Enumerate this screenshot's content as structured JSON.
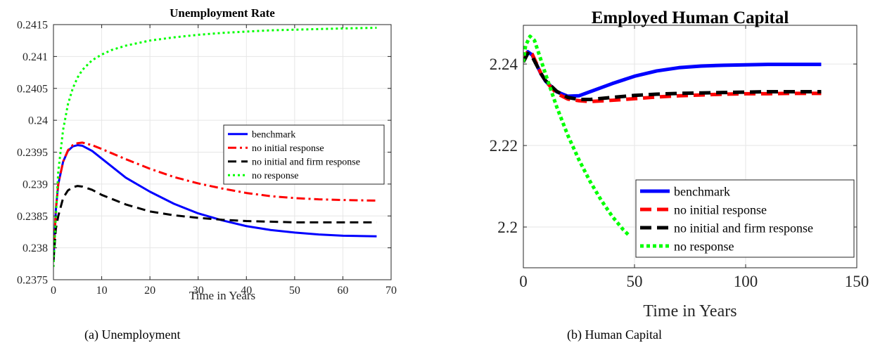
{
  "figure": {
    "caption_a": "(a)  Unemployment",
    "caption_b": "(b) Human Capital"
  },
  "chart_data": [
    {
      "type": "line",
      "title": "Unemployment Rate",
      "xlabel": "Time in Years",
      "ylabel": "",
      "xlim": [
        0,
        70
      ],
      "ylim": [
        0.2375,
        0.2415
      ],
      "xticks": [
        0,
        10,
        20,
        30,
        40,
        50,
        60,
        70
      ],
      "yticks": [
        0.2375,
        0.238,
        0.2385,
        0.239,
        0.2395,
        0.24,
        0.2405,
        0.241,
        0.2415
      ],
      "yticklabels": [
        "0.2375",
        "0.238",
        "0.2385",
        "0.239",
        "0.2395",
        "0.24",
        "0.2405",
        "0.241",
        "0.2415"
      ],
      "grid": true,
      "legend_position": "right",
      "series": [
        {
          "name": "benchmark",
          "color": "#0000ff",
          "dash": "solid",
          "x": [
            0,
            0.5,
            1,
            2,
            3,
            4,
            5,
            6,
            8,
            10,
            15,
            20,
            25,
            30,
            35,
            40,
            45,
            50,
            55,
            60,
            67
          ],
          "y": [
            0.2378,
            0.2386,
            0.239,
            0.23935,
            0.23952,
            0.23959,
            0.23961,
            0.2396,
            0.23952,
            0.2394,
            0.2391,
            0.23888,
            0.23869,
            0.23854,
            0.23843,
            0.23834,
            0.23828,
            0.23824,
            0.23821,
            0.23819,
            0.23818
          ]
        },
        {
          "name": "no initial response",
          "color": "#ff0000",
          "dash": "dashdot",
          "x": [
            0,
            0.5,
            1,
            2,
            3,
            4,
            5,
            6,
            8,
            10,
            15,
            20,
            25,
            30,
            35,
            40,
            45,
            50,
            55,
            60,
            67
          ],
          "y": [
            0.2378,
            0.2386,
            0.239,
            0.23935,
            0.23953,
            0.23961,
            0.23964,
            0.23965,
            0.23961,
            0.23955,
            0.23939,
            0.23924,
            0.23911,
            0.23901,
            0.23893,
            0.23886,
            0.23881,
            0.23878,
            0.23876,
            0.23875,
            0.23874
          ]
        },
        {
          "name": "no initial and firm response",
          "color": "#000000",
          "dash": "dashed",
          "x": [
            0,
            0.5,
            1,
            2,
            3,
            4,
            5,
            6,
            8,
            10,
            15,
            20,
            25,
            30,
            35,
            40,
            45,
            50,
            55,
            60,
            67
          ],
          "y": [
            0.2378,
            0.2383,
            0.2385,
            0.23878,
            0.2389,
            0.23895,
            0.23897,
            0.23896,
            0.23891,
            0.23883,
            0.23868,
            0.23857,
            0.23851,
            0.23847,
            0.23844,
            0.23842,
            0.23841,
            0.2384,
            0.2384,
            0.2384,
            0.2384
          ]
        },
        {
          "name": "no response",
          "color": "#00ff00",
          "dash": "dotted",
          "x": [
            0,
            0.5,
            1,
            2,
            3,
            4,
            5,
            6,
            8,
            10,
            12,
            15,
            20,
            25,
            30,
            35,
            40,
            45,
            50,
            55,
            60,
            67
          ],
          "y": [
            0.2377,
            0.2385,
            0.2392,
            0.23985,
            0.24025,
            0.2405,
            0.24067,
            0.24079,
            0.24094,
            0.24103,
            0.2411,
            0.24117,
            0.24125,
            0.2413,
            0.24134,
            0.24137,
            0.24139,
            0.24141,
            0.24142,
            0.24143,
            0.24144,
            0.24145
          ]
        }
      ]
    },
    {
      "type": "line",
      "title": "Employed Human Capital",
      "xlabel": "Time in Years",
      "ylabel": "",
      "xlim": [
        0,
        150
      ],
      "ylim": [
        2.19,
        2.2495
      ],
      "xticks": [
        0,
        50,
        100,
        150
      ],
      "yticks": [
        2.2,
        2.22,
        2.24
      ],
      "yticklabels": [
        "2.2",
        "2.22",
        "2.24"
      ],
      "grid": true,
      "legend_position": "bottom-right",
      "series": [
        {
          "name": "benchmark",
          "color": "#0000ff",
          "dash": "solid",
          "x": [
            0,
            2,
            4,
            6,
            8,
            10,
            15,
            20,
            25,
            30,
            40,
            50,
            60,
            70,
            80,
            90,
            100,
            110,
            120,
            134
          ],
          "y": [
            2.2405,
            2.243,
            2.2422,
            2.2398,
            2.2375,
            2.2358,
            2.2332,
            2.2321,
            2.2322,
            2.2332,
            2.2352,
            2.237,
            2.2383,
            2.2391,
            2.2395,
            2.2397,
            2.2398,
            2.2399,
            2.2399,
            2.2399
          ]
        },
        {
          "name": "no initial response",
          "color": "#ff0000",
          "dash": "dashed",
          "x": [
            0,
            2,
            4,
            6,
            8,
            10,
            15,
            20,
            25,
            30,
            40,
            50,
            60,
            70,
            80,
            90,
            100,
            110,
            120,
            134
          ],
          "y": [
            2.2405,
            2.2432,
            2.2424,
            2.24,
            2.2376,
            2.2358,
            2.2328,
            2.2314,
            2.231,
            2.2308,
            2.2311,
            2.2315,
            2.2319,
            2.2322,
            2.2324,
            2.2326,
            2.2327,
            2.2327,
            2.2328,
            2.2328
          ]
        },
        {
          "name": "no initial and firm response",
          "color": "#000000",
          "dash": "dashed",
          "x": [
            0,
            2,
            4,
            6,
            8,
            10,
            15,
            20,
            25,
            30,
            40,
            50,
            60,
            70,
            80,
            90,
            100,
            110,
            120,
            134
          ],
          "y": [
            2.2405,
            2.2426,
            2.2418,
            2.2397,
            2.2376,
            2.2359,
            2.2333,
            2.2318,
            2.2313,
            2.2313,
            2.2318,
            2.2323,
            2.2326,
            2.2328,
            2.2329,
            2.233,
            2.2331,
            2.2332,
            2.2332,
            2.2332
          ]
        },
        {
          "name": "no response",
          "color": "#00ff00",
          "dash": "dotted",
          "x": [
            0,
            1,
            3,
            5,
            7,
            10,
            15,
            20,
            25,
            30,
            35,
            40,
            45,
            48
          ],
          "y": [
            2.2405,
            2.2445,
            2.2468,
            2.2458,
            2.2425,
            2.2375,
            2.2295,
            2.2225,
            2.2165,
            2.2112,
            2.2066,
            2.2026,
            2.1993,
            2.1977
          ]
        }
      ]
    }
  ]
}
